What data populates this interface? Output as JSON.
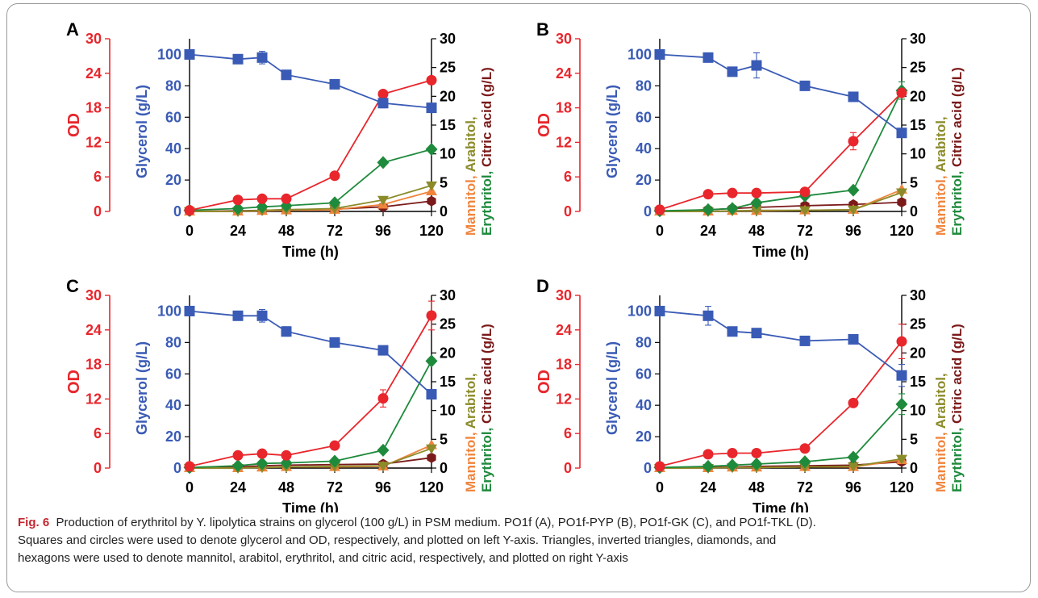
{
  "caption": {
    "fig_label": "Fig. 6",
    "lines": [
      "Production of erythritol by Y. lipolytica strains on glycerol (100 g/L) in PSM medium. PO1f (A), PO1f-PYP (B), PO1f-GK (C), and PO1f-TKL (D).",
      "Squares and circles were used to denote glycerol and OD, respectively, and plotted on left Y-axis. Triangles, inverted triangles, diamonds, and",
      "hexagons were used to denote mannitol, arabitol, erythritol, and citric acid, respectively, and plotted on right Y-axis"
    ]
  },
  "colors": {
    "glycerol": "#3a5bb5",
    "od": "#e8262c",
    "mannitol": "#f0843c",
    "arabitol": "#8b8b2a",
    "erythritol": "#1e8a3c",
    "citric": "#7b1a1a"
  },
  "labels": {
    "od_axis": "OD",
    "glycerol_axis": "Glycerol (g/L)",
    "right_axis_line1": "Mannitol,  Arabitol,",
    "right_axis_line2": "Erythritol, Citric acid (g/L)",
    "x_axis": "Time (h)"
  },
  "chart_data": [
    {
      "panel": "A",
      "type": "line",
      "x": [
        0,
        24,
        36,
        48,
        72,
        96,
        120
      ],
      "x_ticks": [
        0,
        24,
        48,
        72,
        96,
        120
      ],
      "od_ticks": [
        0,
        6,
        12,
        18,
        24,
        30
      ],
      "od_lim": [
        0,
        30
      ],
      "glycerol_ticks": [
        0,
        20,
        40,
        60,
        80,
        100
      ],
      "glycerol_lim": [
        0,
        110
      ],
      "right_ticks": [
        0,
        5,
        10,
        15,
        20,
        25,
        30
      ],
      "right_lim": [
        0,
        30
      ],
      "xlabel": "Time (h)",
      "series": [
        {
          "name": "Glycerol",
          "axis": "glycerol",
          "marker": "square",
          "values": [
            100,
            97,
            98,
            87,
            81,
            69,
            66
          ],
          "err": [
            0,
            0,
            4,
            0,
            0,
            3,
            0
          ]
        },
        {
          "name": "OD",
          "axis": "od",
          "marker": "circle",
          "values": [
            0.2,
            2,
            2.2,
            2.2,
            6.2,
            20.4,
            22.8
          ],
          "err": [
            0,
            0,
            0,
            0,
            0,
            0,
            0
          ]
        },
        {
          "name": "Erythritol",
          "axis": "right",
          "marker": "diamond",
          "values": [
            0.2,
            0.5,
            0.8,
            1,
            1.5,
            8.5,
            10.8
          ],
          "err": [
            0,
            0,
            0,
            0,
            0,
            0,
            0
          ]
        },
        {
          "name": "Arabitol",
          "axis": "right",
          "marker": "inv-triangle",
          "values": [
            0,
            0,
            0.2,
            0.3,
            0.5,
            2,
            4.5
          ],
          "err": [
            0,
            0,
            0,
            0,
            0,
            0,
            0
          ]
        },
        {
          "name": "Mannitol",
          "axis": "right",
          "marker": "triangle",
          "values": [
            0,
            0,
            0.1,
            0.2,
            0.3,
            1.2,
            3.5
          ],
          "err": [
            0,
            0,
            0,
            0,
            0,
            0,
            0
          ]
        },
        {
          "name": "Citric acid",
          "axis": "right",
          "marker": "hexagon",
          "values": [
            0,
            0.1,
            0.2,
            0.3,
            0.4,
            0.8,
            1.8
          ],
          "err": [
            0,
            0,
            0,
            0,
            0,
            0,
            0
          ]
        }
      ]
    },
    {
      "panel": "B",
      "type": "line",
      "x": [
        0,
        24,
        36,
        48,
        72,
        96,
        120
      ],
      "x_ticks": [
        0,
        24,
        48,
        72,
        96,
        120
      ],
      "od_ticks": [
        0,
        6,
        12,
        18,
        24,
        30
      ],
      "od_lim": [
        0,
        30
      ],
      "glycerol_ticks": [
        0,
        20,
        40,
        60,
        80,
        100
      ],
      "glycerol_lim": [
        0,
        110
      ],
      "right_ticks": [
        0,
        5,
        10,
        15,
        20,
        25,
        30
      ],
      "right_lim": [
        0,
        30
      ],
      "xlabel": "Time (h)",
      "series": [
        {
          "name": "Glycerol",
          "axis": "glycerol",
          "marker": "square",
          "values": [
            100,
            98,
            89,
            93,
            80,
            73,
            50
          ],
          "err": [
            0,
            0,
            0,
            8,
            0,
            0,
            0
          ]
        },
        {
          "name": "OD",
          "axis": "od",
          "marker": "circle",
          "values": [
            0.3,
            3,
            3.2,
            3.2,
            3.4,
            12.2,
            20.6
          ],
          "err": [
            0,
            0,
            0,
            0,
            0,
            1.5,
            0
          ]
        },
        {
          "name": "Erythritol",
          "axis": "right",
          "marker": "diamond",
          "values": [
            0.1,
            0.3,
            0.5,
            1.5,
            2.7,
            3.7,
            21
          ],
          "err": [
            0,
            0,
            0,
            0,
            0,
            0,
            1.5
          ]
        },
        {
          "name": "Arabitol",
          "axis": "right",
          "marker": "inv-triangle",
          "values": [
            0,
            0,
            0.1,
            0.2,
            0.2,
            0.3,
            3.3
          ],
          "err": [
            0,
            0,
            0,
            0,
            0,
            0,
            0
          ]
        },
        {
          "name": "Mannitol",
          "axis": "right",
          "marker": "triangle",
          "values": [
            0,
            0,
            0.1,
            0.1,
            0.2,
            0.3,
            3.8
          ],
          "err": [
            0,
            0,
            0,
            0,
            0,
            0,
            0
          ]
        },
        {
          "name": "Citric acid",
          "axis": "right",
          "marker": "hexagon",
          "values": [
            0,
            0.3,
            0.5,
            0.7,
            1,
            1.2,
            1.6
          ],
          "err": [
            0,
            0,
            0,
            0,
            0,
            0,
            0
          ]
        }
      ]
    },
    {
      "panel": "C",
      "type": "line",
      "x": [
        0,
        24,
        36,
        48,
        72,
        96,
        120
      ],
      "x_ticks": [
        0,
        24,
        48,
        72,
        96,
        120
      ],
      "od_ticks": [
        0,
        6,
        12,
        18,
        24,
        30
      ],
      "od_lim": [
        0,
        30
      ],
      "glycerol_ticks": [
        0,
        20,
        40,
        60,
        80,
        100
      ],
      "glycerol_lim": [
        0,
        110
      ],
      "right_ticks": [
        0,
        5,
        10,
        15,
        20,
        25,
        30
      ],
      "right_lim": [
        0,
        30
      ],
      "xlabel": "Time (h)",
      "series": [
        {
          "name": "Glycerol",
          "axis": "glycerol",
          "marker": "square",
          "values": [
            100,
            97,
            97,
            87,
            80,
            75,
            47
          ],
          "err": [
            0,
            0,
            4,
            3,
            0,
            0,
            0
          ]
        },
        {
          "name": "OD",
          "axis": "od",
          "marker": "circle",
          "values": [
            0.3,
            2.2,
            2.5,
            2.2,
            3.9,
            12.1,
            26.5
          ],
          "err": [
            0,
            0,
            0,
            0,
            0,
            1.5,
            2.5
          ]
        },
        {
          "name": "Erythritol",
          "axis": "right",
          "marker": "diamond",
          "values": [
            0.1,
            0.4,
            0.8,
            0.9,
            1.2,
            3.1,
            18.6
          ],
          "err": [
            0,
            0,
            0,
            0,
            0,
            0,
            0
          ]
        },
        {
          "name": "Arabitol",
          "axis": "right",
          "marker": "inv-triangle",
          "values": [
            0,
            0,
            0.1,
            0.2,
            0.3,
            0.4,
            3.4
          ],
          "err": [
            0,
            0,
            0,
            0,
            0,
            0,
            0
          ]
        },
        {
          "name": "Mannitol",
          "axis": "right",
          "marker": "triangle",
          "values": [
            0,
            0,
            0.1,
            0.2,
            0.2,
            0.3,
            4
          ],
          "err": [
            0,
            0,
            0,
            0,
            0,
            0,
            0
          ]
        },
        {
          "name": "Citric acid",
          "axis": "right",
          "marker": "hexagon",
          "values": [
            0,
            0.2,
            0.4,
            0.5,
            0.6,
            0.7,
            1.8
          ],
          "err": [
            0,
            0,
            0,
            0,
            0,
            0,
            0
          ]
        }
      ]
    },
    {
      "panel": "D",
      "type": "line",
      "x": [
        0,
        24,
        36,
        48,
        72,
        96,
        120
      ],
      "x_ticks": [
        0,
        24,
        48,
        72,
        96,
        120
      ],
      "od_ticks": [
        0,
        6,
        12,
        18,
        24,
        30
      ],
      "od_lim": [
        0,
        30
      ],
      "glycerol_ticks": [
        0,
        20,
        40,
        60,
        80,
        100
      ],
      "glycerol_lim": [
        0,
        110
      ],
      "right_ticks": [
        0,
        5,
        10,
        15,
        20,
        25,
        30
      ],
      "right_lim": [
        0,
        30
      ],
      "xlabel": "Time (h)",
      "series": [
        {
          "name": "Glycerol",
          "axis": "glycerol",
          "marker": "square",
          "values": [
            100,
            97,
            87,
            86,
            81,
            82,
            59
          ],
          "err": [
            0,
            6,
            0,
            0,
            0,
            0,
            7
          ]
        },
        {
          "name": "OD",
          "axis": "od",
          "marker": "circle",
          "values": [
            0.3,
            2.4,
            2.6,
            2.6,
            3.4,
            11.3,
            22
          ],
          "err": [
            0,
            0,
            0,
            0,
            0,
            0,
            3
          ]
        },
        {
          "name": "Erythritol",
          "axis": "right",
          "marker": "diamond",
          "values": [
            0.1,
            0.3,
            0.5,
            0.7,
            1.1,
            1.9,
            11.1
          ],
          "err": [
            0,
            0,
            0,
            0,
            0,
            0,
            1.8
          ]
        },
        {
          "name": "Arabitol",
          "axis": "right",
          "marker": "inv-triangle",
          "values": [
            0,
            0,
            0.1,
            0.1,
            0.2,
            0.3,
            1.6
          ],
          "err": [
            0,
            0,
            0,
            0,
            0,
            0,
            0
          ]
        },
        {
          "name": "Mannitol",
          "axis": "right",
          "marker": "triangle",
          "values": [
            0,
            0,
            0.1,
            0.1,
            0.2,
            0.2,
            1.4
          ],
          "err": [
            0,
            0,
            0,
            0,
            0,
            0,
            0
          ]
        },
        {
          "name": "Citric acid",
          "axis": "right",
          "marker": "hexagon",
          "values": [
            0,
            0.1,
            0.2,
            0.3,
            0.4,
            0.5,
            1.1
          ],
          "err": [
            0,
            0,
            0,
            0,
            0,
            0,
            0
          ]
        }
      ]
    }
  ]
}
